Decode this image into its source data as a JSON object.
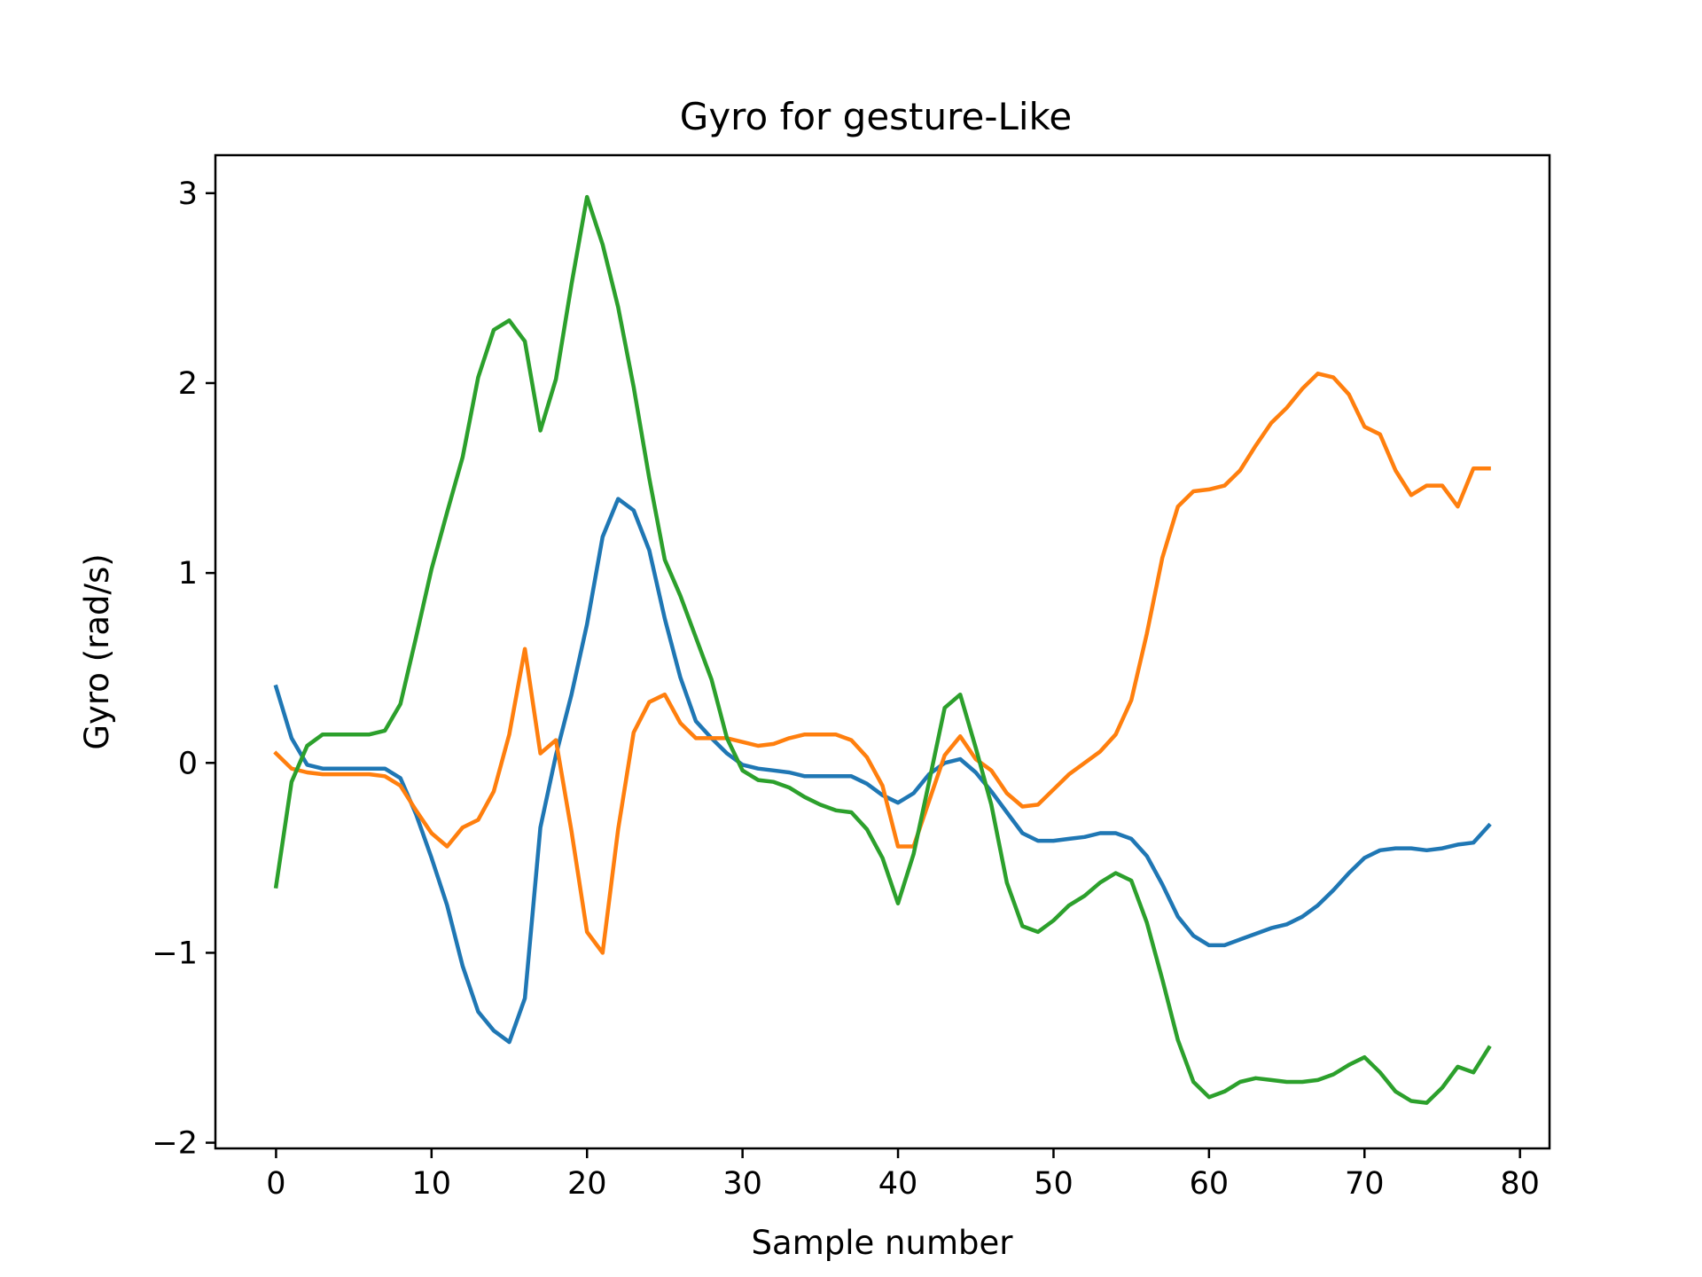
{
  "chart_data": {
    "type": "line",
    "title": "Gyro for gesture-Like",
    "xlabel": "Sample number",
    "ylabel": "Gyro  (rad/s)",
    "xlim": [
      -3.9,
      81.9
    ],
    "ylim": [
      -2.03,
      3.2
    ],
    "xticks": [
      0,
      10,
      20,
      30,
      40,
      50,
      60,
      70,
      80
    ],
    "xtick_labels": [
      "0",
      "10",
      "20",
      "30",
      "40",
      "50",
      "60",
      "70",
      "80"
    ],
    "yticks": [
      -2,
      -1,
      0,
      1,
      2,
      3
    ],
    "ytick_labels": [
      "−2",
      "−1",
      "0",
      "1",
      "2",
      "3"
    ],
    "grid": false,
    "x": [
      0,
      1,
      2,
      3,
      4,
      5,
      6,
      7,
      8,
      9,
      10,
      11,
      12,
      13,
      14,
      15,
      16,
      17,
      18,
      19,
      20,
      21,
      22,
      23,
      24,
      25,
      26,
      27,
      28,
      29,
      30,
      31,
      32,
      33,
      34,
      35,
      36,
      37,
      38,
      39,
      40,
      41,
      42,
      43,
      44,
      45,
      46,
      47,
      48,
      49,
      50,
      51,
      52,
      53,
      54,
      55,
      56,
      57,
      58,
      59,
      60,
      61,
      62,
      63,
      64,
      65,
      66,
      67,
      68,
      69,
      70,
      71,
      72,
      73,
      74,
      75,
      76,
      77,
      78
    ],
    "series": [
      {
        "color": "#1f77b4",
        "values": [
          0.4,
          0.13,
          -0.01,
          -0.03,
          -0.03,
          -0.03,
          -0.03,
          -0.03,
          -0.08,
          -0.27,
          -0.5,
          -0.75,
          -1.07,
          -1.31,
          -1.41,
          -1.47,
          -1.24,
          -0.34,
          0.04,
          0.36,
          0.73,
          1.19,
          1.39,
          1.33,
          1.12,
          0.76,
          0.45,
          0.22,
          0.13,
          0.05,
          -0.01,
          -0.03,
          -0.04,
          -0.05,
          -0.07,
          -0.07,
          -0.07,
          -0.07,
          -0.11,
          -0.17,
          -0.21,
          -0.16,
          -0.06,
          0,
          0.02,
          -0.05,
          -0.15,
          -0.26,
          -0.37,
          -0.41,
          -0.41,
          -0.4,
          -0.39,
          -0.37,
          -0.37,
          -0.4,
          -0.49,
          -0.64,
          -0.81,
          -0.91,
          -0.96,
          -0.96,
          -0.93,
          -0.9,
          -0.87,
          -0.85,
          -0.81,
          -0.75,
          -0.67,
          -0.58,
          -0.5,
          -0.46,
          -0.45,
          -0.45,
          -0.46,
          -0.45,
          -0.43,
          -0.42,
          -0.33
        ]
      },
      {
        "color": "#ff7f0e",
        "values": [
          0.05,
          -0.03,
          -0.05,
          -0.06,
          -0.06,
          -0.06,
          -0.06,
          -0.07,
          -0.12,
          -0.25,
          -0.37,
          -0.44,
          -0.34,
          -0.3,
          -0.15,
          0.15,
          0.6,
          0.05,
          0.12,
          -0.36,
          -0.89,
          -1,
          -0.35,
          0.16,
          0.32,
          0.36,
          0.21,
          0.13,
          0.13,
          0.13,
          0.11,
          0.09,
          0.1,
          0.13,
          0.15,
          0.15,
          0.15,
          0.12,
          0.03,
          -0.12,
          -0.44,
          -0.44,
          -0.2,
          0.04,
          0.14,
          0.02,
          -0.04,
          -0.16,
          -0.23,
          -0.22,
          -0.14,
          -0.06,
          0,
          0.06,
          0.15,
          0.33,
          0.68,
          1.08,
          1.35,
          1.43,
          1.44,
          1.46,
          1.54,
          1.67,
          1.79,
          1.87,
          1.97,
          2.05,
          2.03,
          1.94,
          1.77,
          1.73,
          1.54,
          1.41,
          1.46,
          1.46,
          1.35,
          1.55,
          1.55
        ]
      },
      {
        "color": "#2ca02c",
        "values": [
          -0.65,
          -0.1,
          0.09,
          0.15,
          0.15,
          0.15,
          0.15,
          0.17,
          0.31,
          0.66,
          1.02,
          1.32,
          1.61,
          2.03,
          2.28,
          2.33,
          2.22,
          1.75,
          2.02,
          2.52,
          2.98,
          2.73,
          2.4,
          1.98,
          1.5,
          1.07,
          0.88,
          0.66,
          0.44,
          0.13,
          -0.04,
          -0.09,
          -0.1,
          -0.13,
          -0.18,
          -0.22,
          -0.25,
          -0.26,
          -0.35,
          -0.5,
          -0.74,
          -0.48,
          -0.1,
          0.29,
          0.36,
          0.08,
          -0.22,
          -0.63,
          -0.86,
          -0.89,
          -0.83,
          -0.75,
          -0.7,
          -0.63,
          -0.58,
          -0.62,
          -0.84,
          -1.14,
          -1.46,
          -1.68,
          -1.76,
          -1.73,
          -1.68,
          -1.66,
          -1.67,
          -1.68,
          -1.68,
          -1.67,
          -1.64,
          -1.59,
          -1.55,
          -1.63,
          -1.73,
          -1.78,
          -1.79,
          -1.71,
          -1.6,
          -1.63,
          -1.5
        ]
      }
    ]
  }
}
